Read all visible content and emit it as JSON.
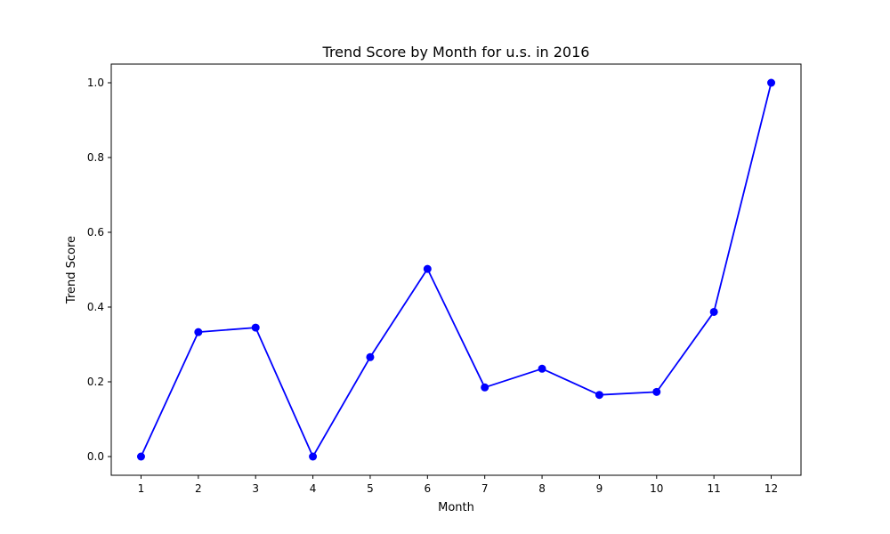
{
  "chart_data": {
    "type": "line",
    "title": "Trend Score by Month for u.s. in 2016",
    "xlabel": "Month",
    "ylabel": "Trend Score",
    "x": [
      1,
      2,
      3,
      4,
      5,
      6,
      7,
      8,
      9,
      10,
      11,
      12
    ],
    "x_ticks": [
      "1",
      "2",
      "3",
      "4",
      "5",
      "6",
      "7",
      "8",
      "9",
      "10",
      "11",
      "12"
    ],
    "y_ticks": [
      "0.0",
      "0.2",
      "0.4",
      "0.6",
      "0.8",
      "1.0"
    ],
    "xlim": [
      0.48,
      12.52
    ],
    "ylim": [
      -0.05,
      1.05
    ],
    "grid": false,
    "series": [
      {
        "color": "#0000ff",
        "marker": "circle",
        "values": [
          0.0,
          0.333,
          0.345,
          0.0,
          0.266,
          0.502,
          0.185,
          0.235,
          0.165,
          0.173,
          0.387,
          1.0
        ]
      }
    ]
  }
}
